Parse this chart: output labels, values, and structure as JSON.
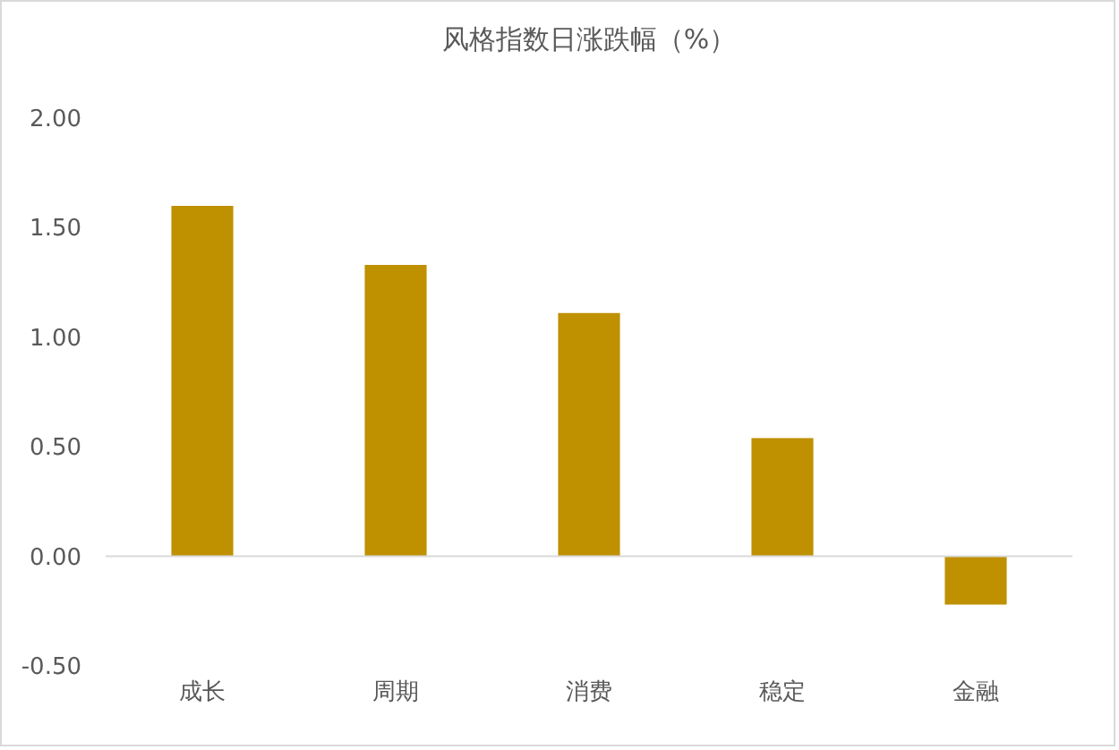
{
  "chart_data": {
    "type": "bar",
    "title": "风格指数日涨跌幅（%）",
    "categories": [
      "成长",
      "周期",
      "消费",
      "稳定",
      "金融"
    ],
    "values": [
      1.6,
      1.33,
      1.11,
      0.54,
      -0.22
    ],
    "color": "#bf9000",
    "ylim": [
      -0.5,
      2.0
    ],
    "yticks": [
      {
        "value": -0.5,
        "label": "-0.50"
      },
      {
        "value": 0,
        "label": "0.00"
      },
      {
        "value": 0.5,
        "label": "0.50"
      },
      {
        "value": 1,
        "label": "1.00"
      },
      {
        "value": 1.5,
        "label": "1.50"
      },
      {
        "value": 2,
        "label": "2.00"
      }
    ],
    "ref_lines": [
      {
        "axis": "y",
        "value": 0,
        "color": "#d9d9d9"
      }
    ],
    "grid": false
  }
}
